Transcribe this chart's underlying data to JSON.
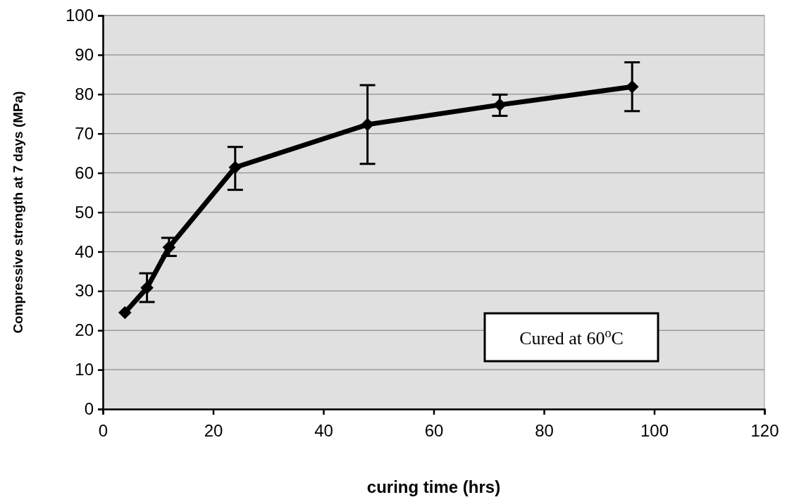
{
  "chart_data": {
    "type": "line",
    "xlabel": "curing time (hrs)",
    "ylabel": "Compressive strength at 7 days (MPa)",
    "x": [
      4,
      8,
      12,
      24,
      48,
      72,
      96
    ],
    "series": [
      {
        "color": "#000000",
        "values": [
          24.5,
          30.8,
          41.1,
          61.4,
          72.3,
          77.3,
          81.9
        ],
        "errors": [
          null,
          [
            27.2,
            34.5
          ],
          [
            38.9,
            43.5
          ],
          [
            55.7,
            66.6
          ],
          [
            62.3,
            82.3
          ],
          [
            74.5,
            79.9
          ],
          [
            75.7,
            88.1
          ]
        ]
      }
    ],
    "xlim": [
      0,
      120
    ],
    "xticks": [
      0,
      20,
      40,
      60,
      80,
      100,
      120
    ],
    "ylim": [
      0,
      100
    ],
    "yticks": [
      0,
      10,
      20,
      30,
      40,
      50,
      60,
      70,
      80,
      90,
      100
    ],
    "grid": "y",
    "marker": "diamond",
    "line_style": "solid",
    "annotations": [
      "Cured at 60$^{o}$C"
    ]
  }
}
